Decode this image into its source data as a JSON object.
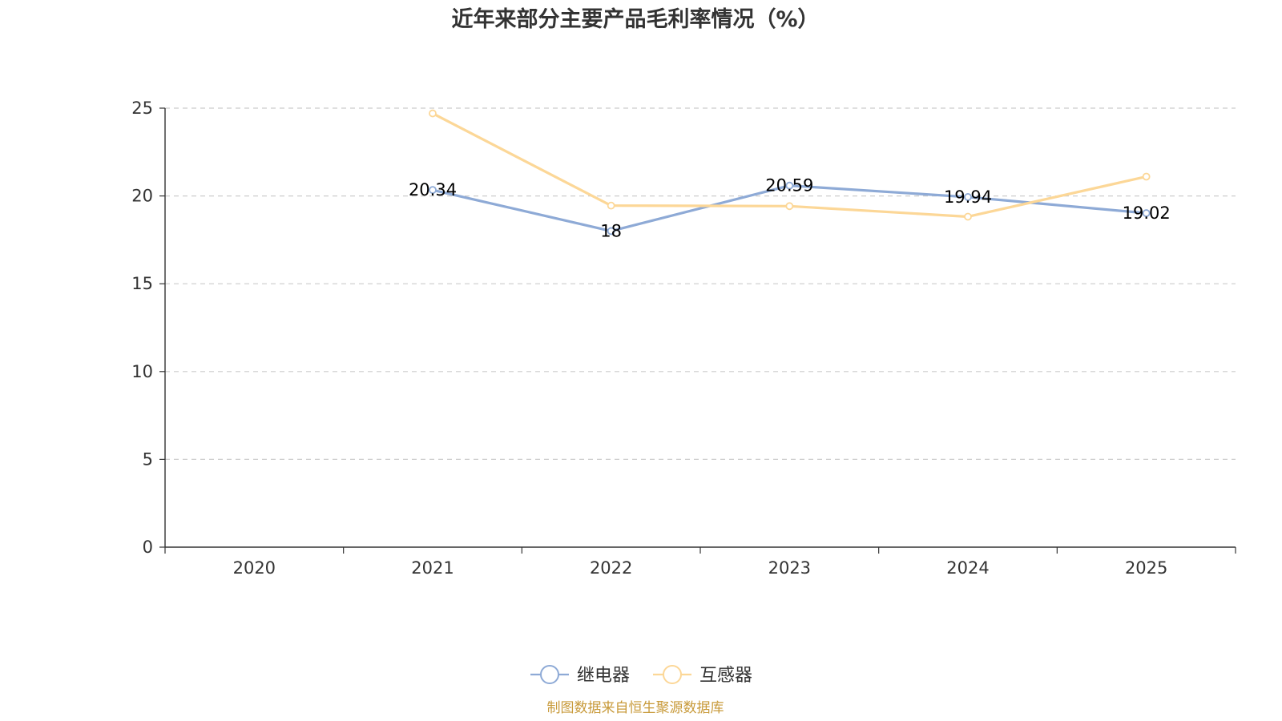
{
  "chart_data": {
    "type": "line",
    "title": "近年来部分主要产品毛利率情况（%）",
    "categories": [
      "2020",
      "2021",
      "2022",
      "2023",
      "2024",
      "2025"
    ],
    "ylim": [
      0,
      25
    ],
    "yticks": [
      "0",
      "5",
      "10",
      "15",
      "20",
      "25"
    ],
    "grid": true,
    "legend_position": "bottom",
    "series": [
      {
        "name": "继电器",
        "color": "#8eaad6",
        "values": [
          null,
          20.34,
          18,
          20.59,
          19.94,
          19.02
        ],
        "labels": [
          "",
          "20.34",
          "18",
          "20.59",
          "19.94",
          "19.02"
        ]
      },
      {
        "name": "互感器",
        "color": "#fcd797",
        "values": [
          null,
          24.7,
          19.45,
          19.42,
          18.82,
          21.1
        ],
        "labels": [
          "",
          "",
          "",
          "",
          "",
          ""
        ]
      }
    ],
    "source": "制图数据来自恒生聚源数据库",
    "source_color": "#c89a3a"
  }
}
